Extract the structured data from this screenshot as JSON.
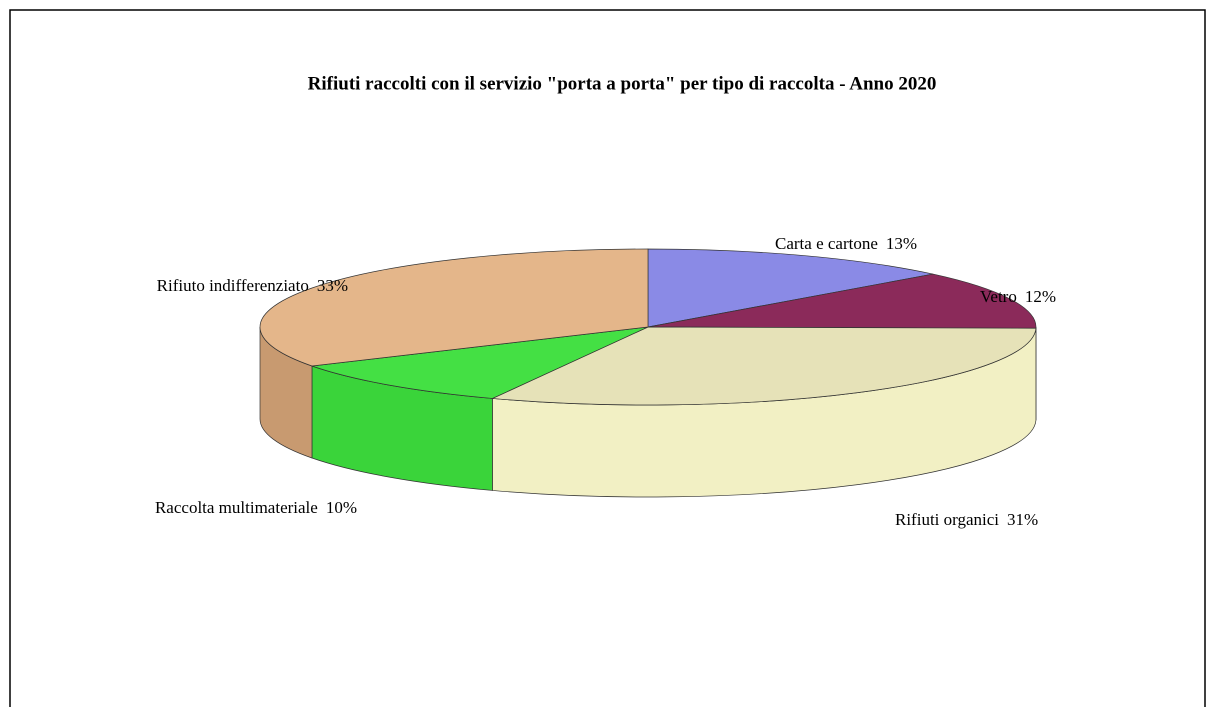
{
  "chart_data": {
    "type": "pie3d",
    "title": "Rifiuti raccolti con il servizio \"porta a porta\" per tipo di raccolta - Anno 2020",
    "categories": [
      "Carta e cartone",
      "Vetro",
      "Rifiuti organici",
      "Raccolta multimateriale",
      "Rifiuto indifferenziato"
    ],
    "values": [
      13,
      12,
      31,
      10,
      33
    ],
    "value_labels": [
      "13%",
      "12%",
      "31%",
      "10%",
      "33%"
    ],
    "colors": [
      "#8a8ae6",
      "#8b2a5a",
      "#e6e2b8",
      "#44e044",
      "#e4b68a"
    ],
    "side_colors": [
      "#7272c8",
      "#6e1f47",
      "#f2f0c4",
      "#3ad43a",
      "#c89a70"
    ]
  }
}
